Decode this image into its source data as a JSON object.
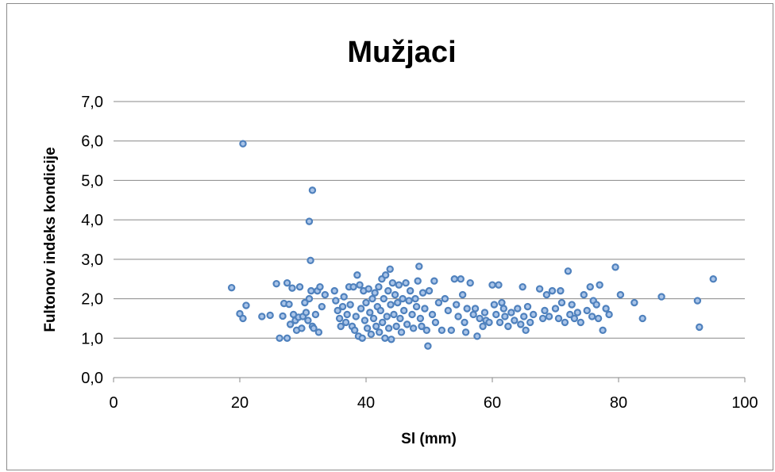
{
  "chart_data": {
    "type": "scatter",
    "title": "Mužjaci",
    "xlabel": "Sl (mm)",
    "ylabel": "Fultonov indeks kondicije",
    "xlim": [
      0,
      100
    ],
    "ylim": [
      0,
      7
    ],
    "xticks": [
      "0",
      "20",
      "40",
      "60",
      "80",
      "100"
    ],
    "yticks": [
      "0,0",
      "1,0",
      "2,0",
      "3,0",
      "4,0",
      "5,0",
      "6,0",
      "7,0"
    ],
    "grid": true,
    "legend": "none",
    "marker_color": "#4f81bd",
    "marker_fill": "#a9c4e8",
    "points": [
      [
        20.5,
        5.93
      ],
      [
        31.5,
        4.75
      ],
      [
        31.0,
        3.96
      ],
      [
        31.2,
        2.97
      ],
      [
        18.7,
        2.28
      ],
      [
        20.0,
        1.62
      ],
      [
        20.5,
        1.5
      ],
      [
        21.0,
        1.83
      ],
      [
        23.5,
        1.55
      ],
      [
        24.8,
        1.58
      ],
      [
        25.8,
        2.38
      ],
      [
        26.3,
        1.0
      ],
      [
        26.8,
        1.56
      ],
      [
        27.0,
        1.88
      ],
      [
        27.5,
        2.4
      ],
      [
        27.5,
        1.0
      ],
      [
        27.8,
        1.86
      ],
      [
        28.0,
        1.35
      ],
      [
        28.3,
        2.27
      ],
      [
        28.5,
        1.6
      ],
      [
        28.8,
        1.45
      ],
      [
        29.0,
        1.2
      ],
      [
        29.3,
        1.53
      ],
      [
        29.5,
        2.3
      ],
      [
        29.8,
        1.25
      ],
      [
        30.0,
        1.55
      ],
      [
        30.3,
        1.9
      ],
      [
        30.5,
        1.65
      ],
      [
        30.8,
        1.45
      ],
      [
        31.0,
        2.0
      ],
      [
        31.3,
        2.2
      ],
      [
        31.5,
        1.3
      ],
      [
        31.7,
        1.25
      ],
      [
        32.0,
        1.6
      ],
      [
        32.3,
        2.2
      ],
      [
        32.5,
        1.15
      ],
      [
        32.7,
        2.3
      ],
      [
        33.0,
        1.8
      ],
      [
        33.5,
        2.1
      ],
      [
        35.0,
        2.2
      ],
      [
        35.2,
        1.95
      ],
      [
        35.5,
        1.7
      ],
      [
        35.8,
        1.5
      ],
      [
        36.0,
        1.3
      ],
      [
        36.3,
        1.8
      ],
      [
        36.5,
        2.05
      ],
      [
        36.8,
        1.4
      ],
      [
        37.0,
        1.6
      ],
      [
        37.3,
        2.3
      ],
      [
        37.5,
        1.85
      ],
      [
        37.8,
        1.3
      ],
      [
        38.0,
        2.3
      ],
      [
        38.2,
        1.2
      ],
      [
        38.4,
        1.55
      ],
      [
        38.6,
        2.6
      ],
      [
        38.8,
        1.05
      ],
      [
        39.0,
        2.35
      ],
      [
        39.2,
        1.75
      ],
      [
        39.4,
        1.0
      ],
      [
        39.6,
        2.2
      ],
      [
        39.8,
        1.45
      ],
      [
        40.0,
        1.9
      ],
      [
        40.2,
        1.25
      ],
      [
        40.4,
        2.25
      ],
      [
        40.6,
        1.65
      ],
      [
        40.8,
        1.1
      ],
      [
        41.0,
        2.0
      ],
      [
        41.2,
        1.5
      ],
      [
        41.4,
        2.15
      ],
      [
        41.6,
        1.3
      ],
      [
        41.8,
        1.8
      ],
      [
        42.0,
        2.3
      ],
      [
        42.1,
        1.15
      ],
      [
        42.3,
        1.7
      ],
      [
        42.5,
        2.5
      ],
      [
        42.6,
        1.4
      ],
      [
        42.8,
        2.0
      ],
      [
        43.0,
        1.0
      ],
      [
        43.1,
        2.6
      ],
      [
        43.3,
        1.55
      ],
      [
        43.5,
        2.2
      ],
      [
        43.6,
        1.25
      ],
      [
        43.8,
        2.75
      ],
      [
        43.9,
        1.85
      ],
      [
        44.0,
        0.97
      ],
      [
        44.2,
        2.4
      ],
      [
        44.4,
        1.6
      ],
      [
        44.6,
        2.1
      ],
      [
        44.8,
        1.3
      ],
      [
        45.0,
        1.9
      ],
      [
        45.2,
        2.35
      ],
      [
        45.4,
        1.5
      ],
      [
        45.6,
        1.15
      ],
      [
        45.8,
        2.0
      ],
      [
        46.0,
        1.7
      ],
      [
        46.3,
        2.4
      ],
      [
        46.5,
        1.35
      ],
      [
        46.8,
        1.95
      ],
      [
        47.0,
        2.2
      ],
      [
        47.3,
        1.6
      ],
      [
        47.5,
        1.25
      ],
      [
        47.8,
        2.0
      ],
      [
        48.0,
        1.8
      ],
      [
        48.2,
        2.45
      ],
      [
        48.4,
        2.82
      ],
      [
        48.6,
        1.5
      ],
      [
        48.8,
        1.3
      ],
      [
        49.0,
        2.15
      ],
      [
        49.3,
        1.75
      ],
      [
        49.6,
        1.2
      ],
      [
        49.8,
        0.8
      ],
      [
        50.0,
        2.2
      ],
      [
        50.5,
        1.6
      ],
      [
        50.8,
        2.45
      ],
      [
        51.0,
        1.4
      ],
      [
        51.5,
        1.9
      ],
      [
        52.0,
        1.2
      ],
      [
        52.5,
        2.0
      ],
      [
        53.0,
        1.7
      ],
      [
        53.5,
        1.2
      ],
      [
        54.0,
        2.5
      ],
      [
        54.3,
        1.85
      ],
      [
        54.6,
        1.55
      ],
      [
        55.0,
        2.5
      ],
      [
        55.3,
        2.1
      ],
      [
        55.6,
        1.4
      ],
      [
        55.8,
        1.15
      ],
      [
        56.0,
        1.75
      ],
      [
        56.5,
        2.4
      ],
      [
        57.0,
        1.6
      ],
      [
        57.3,
        1.75
      ],
      [
        57.6,
        1.05
      ],
      [
        58.0,
        1.5
      ],
      [
        58.5,
        1.3
      ],
      [
        58.8,
        1.65
      ],
      [
        59.0,
        1.45
      ],
      [
        59.5,
        1.4
      ],
      [
        60.0,
        2.35
      ],
      [
        60.3,
        1.85
      ],
      [
        60.6,
        1.6
      ],
      [
        61.0,
        2.35
      ],
      [
        61.2,
        1.4
      ],
      [
        61.5,
        1.9
      ],
      [
        61.8,
        1.75
      ],
      [
        62.0,
        1.55
      ],
      [
        62.5,
        1.3
      ],
      [
        63.0,
        1.65
      ],
      [
        63.5,
        1.45
      ],
      [
        64.0,
        1.75
      ],
      [
        64.5,
        1.35
      ],
      [
        64.8,
        2.3
      ],
      [
        65.0,
        1.55
      ],
      [
        65.3,
        1.2
      ],
      [
        65.6,
        1.8
      ],
      [
        66.0,
        1.4
      ],
      [
        66.5,
        1.6
      ],
      [
        67.5,
        2.25
      ],
      [
        68.0,
        1.5
      ],
      [
        68.3,
        1.7
      ],
      [
        68.6,
        2.1
      ],
      [
        69.0,
        1.55
      ],
      [
        69.5,
        2.2
      ],
      [
        70.0,
        1.75
      ],
      [
        70.5,
        1.5
      ],
      [
        70.8,
        2.2
      ],
      [
        71.0,
        1.9
      ],
      [
        71.5,
        1.4
      ],
      [
        72.0,
        2.7
      ],
      [
        72.3,
        1.6
      ],
      [
        72.6,
        1.85
      ],
      [
        73.0,
        1.5
      ],
      [
        73.5,
        1.65
      ],
      [
        74.0,
        1.4
      ],
      [
        74.5,
        2.1
      ],
      [
        75.0,
        1.7
      ],
      [
        75.5,
        2.3
      ],
      [
        75.8,
        1.55
      ],
      [
        76.0,
        1.95
      ],
      [
        76.5,
        1.85
      ],
      [
        76.8,
        1.5
      ],
      [
        77.0,
        2.35
      ],
      [
        77.5,
        1.2
      ],
      [
        78.0,
        1.75
      ],
      [
        78.5,
        1.6
      ],
      [
        79.5,
        2.8
      ],
      [
        80.3,
        2.1
      ],
      [
        82.5,
        1.9
      ],
      [
        83.8,
        1.5
      ],
      [
        86.8,
        2.05
      ],
      [
        92.5,
        1.95
      ],
      [
        92.8,
        1.28
      ],
      [
        95.0,
        2.5
      ]
    ]
  }
}
